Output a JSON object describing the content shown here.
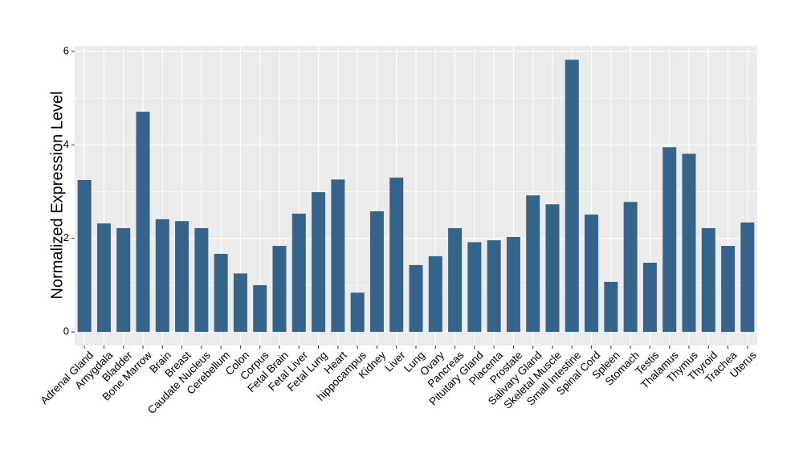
{
  "chart_data": {
    "type": "bar",
    "y_label": "Normalized Expression Level",
    "categories": [
      "Adrenal Gland",
      "Amygdala",
      "Bladder",
      "Bone Marrow",
      "Brain",
      "Breast",
      "Caudate Nucleus",
      "Cerebellum",
      "Colon",
      "Corpus",
      "Fetal Brain",
      "Fetal Liver",
      "Fetal Lung",
      "Heart",
      "hippocampus",
      "Kidney",
      "Liver",
      "Lung",
      "Ovary",
      "Pancreas",
      "Pituitary Gland",
      "Placenta",
      "Prostate",
      "Salivary Gland",
      "Skeletal Muscle",
      "Small Intestine",
      "Spinal Cord",
      "Spleen",
      "Stomach",
      "Testis",
      "Thalamus",
      "Thymus",
      "Thyroid",
      "Trachea",
      "Uterus"
    ],
    "values": [
      3.25,
      2.32,
      2.22,
      4.71,
      2.41,
      2.37,
      2.22,
      1.67,
      1.25,
      1.0,
      1.84,
      2.53,
      2.99,
      3.26,
      0.84,
      2.58,
      3.3,
      1.43,
      1.62,
      2.22,
      1.92,
      1.96,
      2.03,
      2.92,
      2.73,
      5.82,
      2.51,
      1.07,
      2.78,
      1.48,
      3.95,
      3.81,
      2.22,
      1.84,
      2.34
    ],
    "color": "#366389",
    "ylim": [
      -0.29,
      6.12
    ],
    "yticks": [
      0,
      2,
      4,
      6
    ],
    "grid": true
  }
}
